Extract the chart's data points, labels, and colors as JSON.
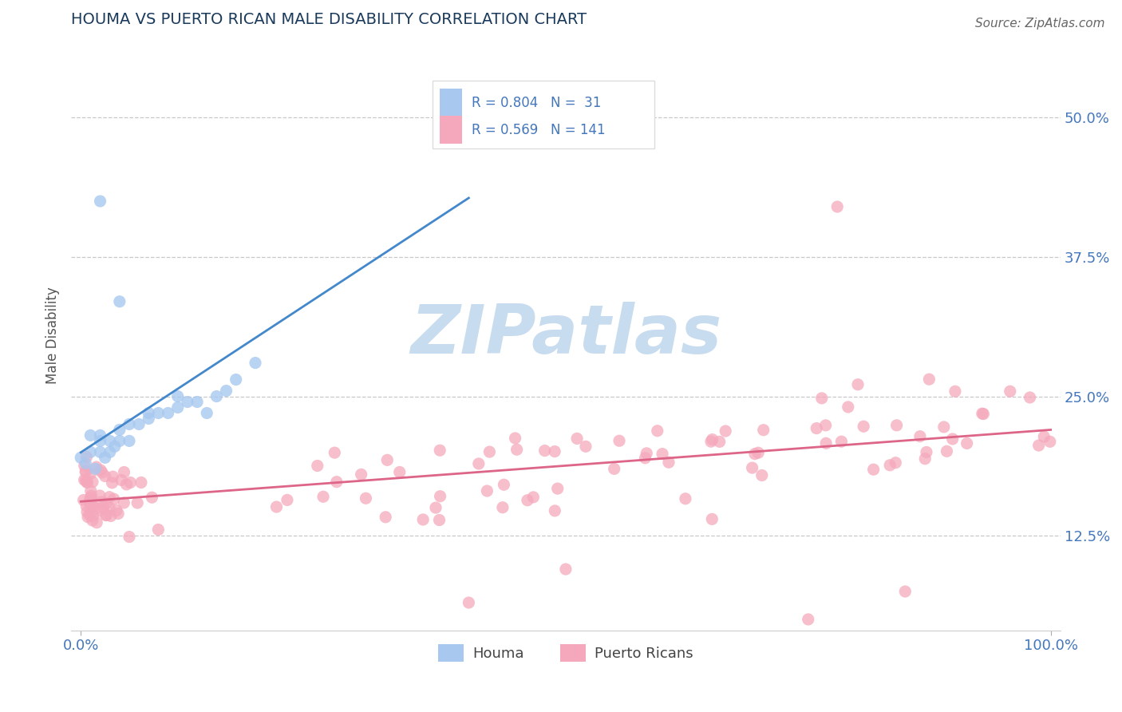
{
  "title": "HOUMA VS PUERTO RICAN MALE DISABILITY CORRELATION CHART",
  "source": "Source: ZipAtlas.com",
  "xlabel": "",
  "ylabel": "Male Disability",
  "xlim": [
    -0.01,
    1.01
  ],
  "ylim": [
    0.04,
    0.57
  ],
  "xticks": [
    0.0,
    1.0
  ],
  "xticklabels": [
    "0.0%",
    "100.0%"
  ],
  "yticks": [
    0.125,
    0.25,
    0.375,
    0.5
  ],
  "yticklabels": [
    "12.5%",
    "25.0%",
    "37.5%",
    "50.0%"
  ],
  "houma_color": "#A8C8F0",
  "puerto_rican_color": "#F5A8BC",
  "houma_line_color": "#4488CC",
  "puerto_rican_line_color": "#DD6688",
  "background_color": "#FFFFFF",
  "grid_color": "#BBBBBB",
  "r_houma": 0.804,
  "n_houma": 31,
  "r_puerto": 0.569,
  "n_puerto": 141,
  "watermark_color": "#C8DCF0",
  "legend_box_color": "#DDDDDD",
  "title_color": "#1a3a5c",
  "tick_color": "#4477BB",
  "source_color": "#666666",
  "ylabel_color": "#555555"
}
